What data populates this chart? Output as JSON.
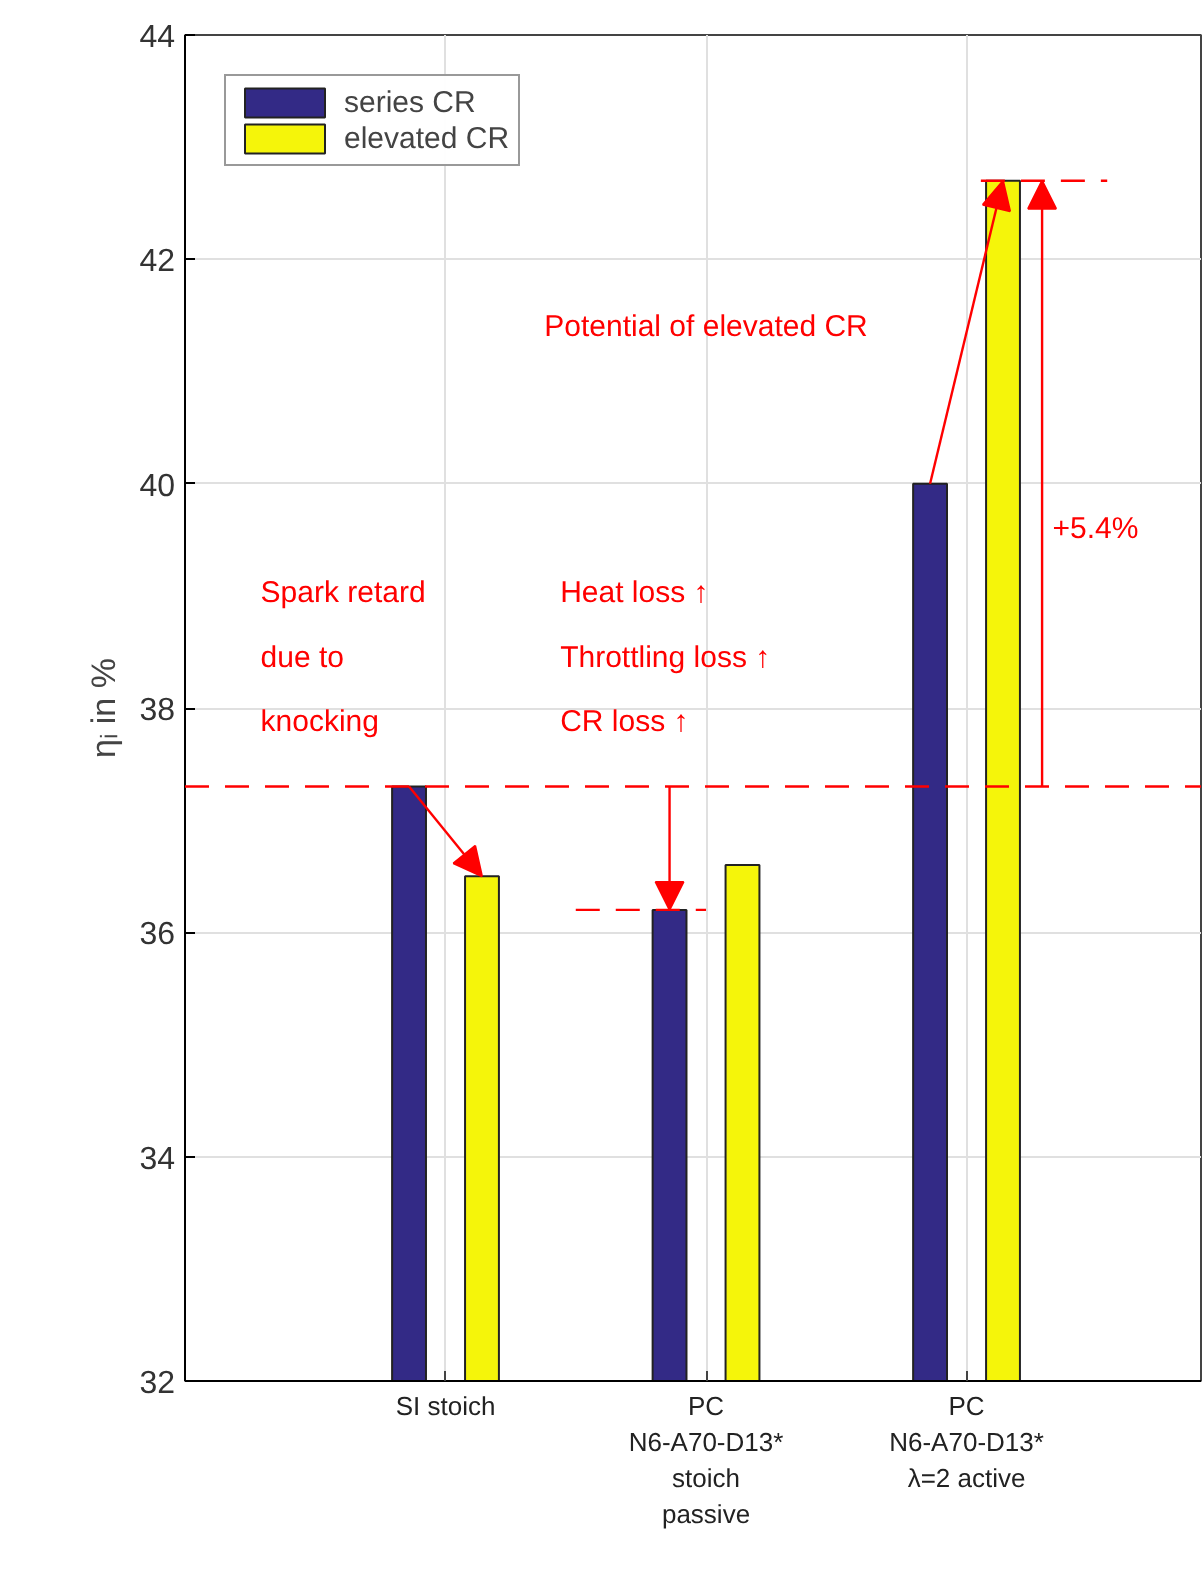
{
  "chart_data": {
    "type": "bar",
    "ylabel": "ηᵢ in %",
    "categories": [
      "SI stoich",
      "PC\nN6-A70-D13*\nstoich\npassive",
      "PC\nN6-A70-D13*\nλ=2 active"
    ],
    "series": [
      {
        "name": "series CR",
        "color": "#332a86",
        "values": [
          37.3,
          36.2,
          40.0
        ]
      },
      {
        "name": "elevated CR",
        "color": "#f5f50a",
        "values": [
          36.5,
          36.6,
          42.7
        ]
      }
    ],
    "ylim": [
      32,
      44
    ],
    "yticks": [
      32,
      34,
      36,
      38,
      40,
      42,
      44
    ],
    "grid": true,
    "legend": "top left",
    "ref_lines": [
      {
        "axis": "y",
        "value": 37.3,
        "color": "#ff0000",
        "line_style": "dashed"
      },
      {
        "axis": "y",
        "value": 36.2,
        "color": "#ff0000",
        "line_style": "dashed"
      },
      {
        "axis": "y",
        "value": 42.7,
        "color": "#ff0000",
        "line_style": "dashed"
      }
    ],
    "annotations": [
      "Spark retard\ndue to\nknocking",
      "Heat loss ↑\nThrottling loss ↑\nCR loss ↑",
      "Potential of elevated CR",
      "+5.4%"
    ]
  }
}
